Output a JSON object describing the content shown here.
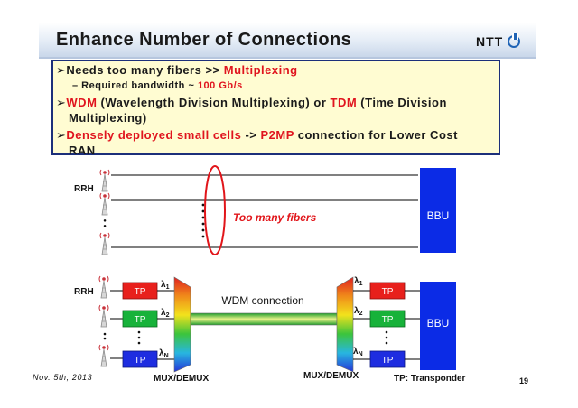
{
  "header": {
    "title": "Enhance Number of Connections",
    "logo_text": "NTT",
    "logo_icon": "ntt-logo-icon"
  },
  "bullets": {
    "b1": {
      "marker": "➢",
      "pre": "Needs too many fibers >> ",
      "red": "Multiplexing"
    },
    "b1_sub": {
      "pre": "– Required bandwidth ~ ",
      "red": "100 Gb/s"
    },
    "b2": {
      "marker": "➢",
      "red1": "WDM",
      "mid1": " (Wavelength Division Multiplexing) or ",
      "red2": "TDM",
      "mid2": " (Time Division",
      "line2": "Multiplexing)"
    },
    "b3": {
      "marker": "➢",
      "red1": "Densely deployed small cells",
      "mid1": " -> ",
      "red2": "P2MP",
      "mid2": " connection for Lower Cost",
      "line2": "RAN"
    }
  },
  "diagram_top": {
    "rrh_label": "RRH",
    "bbu_label": "BBU",
    "annotation": "Too many fibers",
    "dots": "••••••"
  },
  "diagram_bottom": {
    "rrh_label": "RRH",
    "bbu_label": "BBU",
    "tp_label": "TP",
    "lambda_1": "λ",
    "lambda_2": "λ",
    "lambda_n": "λ",
    "sub_1": "1",
    "sub_2": "2",
    "sub_n": "N",
    "wdm_label": "WDM connection",
    "mux_left": "MUX/DEMUX",
    "mux_right": "MUX/DEMUX",
    "tp_legend": "TP: Transponder"
  },
  "colors": {
    "bbu": "#0b2be6",
    "tp_red": "#e8201c",
    "tp_green": "#17b23a",
    "tp_blue": "#1e2de0",
    "ellipse": "#e1151a"
  },
  "footer": {
    "date": "Nov. 5th, 2013",
    "page": "19"
  }
}
